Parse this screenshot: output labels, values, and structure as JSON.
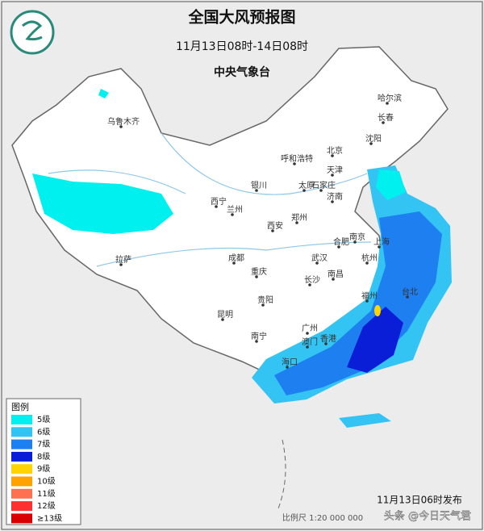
{
  "header": {
    "title": "全国大风预报图",
    "subtitle": "11月13日08时-14日08时",
    "issuer": "中央气象台"
  },
  "legend": {
    "title": "图例",
    "items": [
      {
        "label": "5级",
        "color": "#00f0f0"
      },
      {
        "label": "6级",
        "color": "#33c4f4"
      },
      {
        "label": "7级",
        "color": "#1e7ff0"
      },
      {
        "label": "8级",
        "color": "#0a1ed8"
      },
      {
        "label": "9级",
        "color": "#ffd400"
      },
      {
        "label": "10级",
        "color": "#ffa200"
      },
      {
        "label": "11级",
        "color": "#ff7050"
      },
      {
        "label": "12级",
        "color": "#ff3030"
      },
      {
        "label": "≥13级",
        "color": "#d80000"
      }
    ]
  },
  "cities": [
    "乌鲁木齐",
    "哈尔滨",
    "长春",
    "沈阳",
    "呼和浩特",
    "北京",
    "天津",
    "太原",
    "石家庄",
    "济南",
    "银川",
    "西宁",
    "兰州",
    "郑州",
    "西安",
    "合肥",
    "南京",
    "上海",
    "杭州",
    "武汉",
    "成都",
    "重庆",
    "长沙",
    "南昌",
    "福州",
    "台北",
    "贵阳",
    "昆明",
    "南宁",
    "广州",
    "澳门",
    "香港",
    "海口",
    "拉萨"
  ],
  "footer": {
    "issued": "11月13日06时发布",
    "scale": "比例尺 1:20 000 000",
    "watermark": "头条 @今日天气君"
  }
}
